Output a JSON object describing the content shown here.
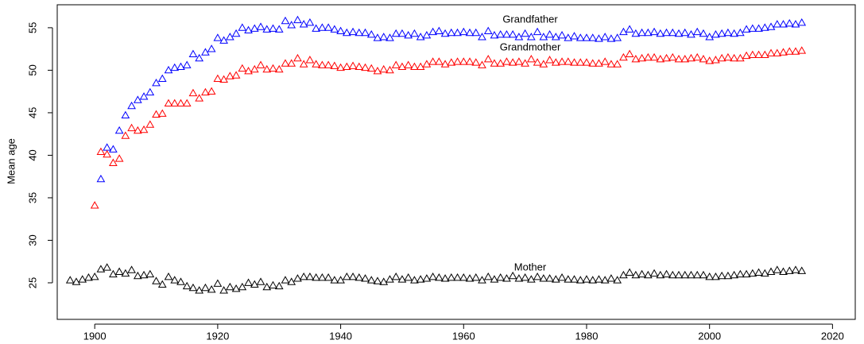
{
  "chart_data": {
    "type": "scatter",
    "y_label": "Mean age",
    "xlim": [
      1893.9,
      2023.7
    ],
    "ylim": [
      20.7,
      57.7
    ],
    "xticks": [
      1900,
      1920,
      1940,
      1960,
      1980,
      2000,
      2020
    ],
    "yticks": [
      25,
      30,
      35,
      40,
      45,
      50,
      55
    ],
    "series": [
      {
        "name": "Grandfather",
        "color": "#0000ff",
        "x": [
          1901,
          1902,
          1903,
          1904,
          1905,
          1906,
          1907,
          1908,
          1909,
          1910,
          1911,
          1912,
          1913,
          1914,
          1915,
          1916,
          1917,
          1918,
          1919,
          1920,
          1921,
          1922,
          1923,
          1924,
          1925,
          1926,
          1927,
          1928,
          1929,
          1930,
          1931,
          1932,
          1933,
          1934,
          1935,
          1936,
          1937,
          1938,
          1939,
          1940,
          1941,
          1942,
          1943,
          1944,
          1945,
          1946,
          1947,
          1948,
          1949,
          1950,
          1951,
          1952,
          1953,
          1954,
          1955,
          1956,
          1957,
          1958,
          1959,
          1960,
          1961,
          1962,
          1963,
          1964,
          1965,
          1966,
          1967,
          1968,
          1969,
          1970,
          1971,
          1972,
          1973,
          1974,
          1975,
          1976,
          1977,
          1978,
          1979,
          1980,
          1981,
          1982,
          1983,
          1984,
          1985,
          1986,
          1987,
          1988,
          1989,
          1990,
          1991,
          1992,
          1993,
          1994,
          1995,
          1996,
          1997,
          1998,
          1999,
          2000,
          2001,
          2002,
          2003,
          2004,
          2005,
          2006,
          2007,
          2008,
          2009,
          2010,
          2011,
          2012,
          2013,
          2014,
          2015
        ],
        "values": [
          37.2,
          40.9,
          40.7,
          42.9,
          44.7,
          45.8,
          46.5,
          46.9,
          47.4,
          48.5,
          49.0,
          50.0,
          50.3,
          50.4,
          50.6,
          51.9,
          51.4,
          52.1,
          52.5,
          53.8,
          53.5,
          53.9,
          54.3,
          55.0,
          54.7,
          54.9,
          55.1,
          54.8,
          54.9,
          54.8,
          55.8,
          55.3,
          55.9,
          55.4,
          55.6,
          54.9,
          55.0,
          55.0,
          54.8,
          54.6,
          54.4,
          54.5,
          54.4,
          54.4,
          54.2,
          53.8,
          53.9,
          53.8,
          54.3,
          54.3,
          54.1,
          54.3,
          53.9,
          54.1,
          54.5,
          54.6,
          54.3,
          54.4,
          54.4,
          54.5,
          54.4,
          54.4,
          53.9,
          54.6,
          54.1,
          54.2,
          54.2,
          54.2,
          53.9,
          54.3,
          53.9,
          54.5,
          53.9,
          54.2,
          53.9,
          54.1,
          53.8,
          54.0,
          53.8,
          53.8,
          53.8,
          53.7,
          53.9,
          53.7,
          53.8,
          54.5,
          54.8,
          54.3,
          54.4,
          54.4,
          54.5,
          54.3,
          54.4,
          54.4,
          54.3,
          54.4,
          54.2,
          54.5,
          54.3,
          53.9,
          54.2,
          54.3,
          54.4,
          54.3,
          54.4,
          54.8,
          54.9,
          54.9,
          55.0,
          55.1,
          55.4,
          55.4,
          55.5,
          55.4,
          55.6
        ]
      },
      {
        "name": "Grandmother",
        "color": "#ff0000",
        "x": [
          1900,
          1901,
          1902,
          1903,
          1904,
          1905,
          1906,
          1907,
          1908,
          1909,
          1910,
          1911,
          1912,
          1913,
          1914,
          1915,
          1916,
          1917,
          1918,
          1919,
          1920,
          1921,
          1922,
          1923,
          1924,
          1925,
          1926,
          1927,
          1928,
          1929,
          1930,
          1931,
          1932,
          1933,
          1934,
          1935,
          1936,
          1937,
          1938,
          1939,
          1940,
          1941,
          1942,
          1943,
          1944,
          1945,
          1946,
          1947,
          1948,
          1949,
          1950,
          1951,
          1952,
          1953,
          1954,
          1955,
          1956,
          1957,
          1958,
          1959,
          1960,
          1961,
          1962,
          1963,
          1964,
          1965,
          1966,
          1967,
          1968,
          1969,
          1970,
          1971,
          1972,
          1973,
          1974,
          1975,
          1976,
          1977,
          1978,
          1979,
          1980,
          1981,
          1982,
          1983,
          1984,
          1985,
          1986,
          1987,
          1988,
          1989,
          1990,
          1991,
          1992,
          1993,
          1994,
          1995,
          1996,
          1997,
          1998,
          1999,
          2000,
          2001,
          2002,
          2003,
          2004,
          2005,
          2006,
          2007,
          2008,
          2009,
          2010,
          2011,
          2012,
          2013,
          2014,
          2015
        ],
        "values": [
          34.1,
          40.4,
          40.1,
          39.1,
          39.6,
          42.3,
          43.2,
          42.9,
          43.0,
          43.6,
          44.8,
          44.9,
          46.1,
          46.1,
          46.1,
          46.1,
          47.3,
          46.7,
          47.4,
          47.5,
          49.0,
          48.9,
          49.3,
          49.4,
          50.2,
          49.9,
          50.1,
          50.6,
          50.1,
          50.2,
          50.1,
          50.8,
          50.8,
          51.4,
          50.7,
          51.2,
          50.7,
          50.6,
          50.6,
          50.5,
          50.3,
          50.4,
          50.5,
          50.4,
          50.3,
          50.2,
          49.9,
          50.1,
          50.0,
          50.6,
          50.4,
          50.6,
          50.4,
          50.4,
          50.7,
          51.0,
          51.0,
          50.7,
          50.9,
          51.0,
          51.0,
          51.0,
          50.9,
          50.6,
          51.3,
          50.8,
          50.8,
          51.0,
          50.9,
          51.0,
          50.8,
          51.3,
          50.9,
          50.7,
          51.2,
          50.9,
          51.0,
          51.0,
          50.9,
          50.9,
          50.9,
          50.8,
          50.8,
          51.0,
          50.7,
          50.7,
          51.5,
          51.9,
          51.3,
          51.4,
          51.5,
          51.5,
          51.3,
          51.4,
          51.5,
          51.3,
          51.3,
          51.4,
          51.5,
          51.3,
          51.1,
          51.2,
          51.4,
          51.5,
          51.4,
          51.4,
          51.7,
          51.8,
          51.8,
          51.8,
          52.0,
          52.0,
          52.1,
          52.2,
          52.2,
          52.3
        ]
      },
      {
        "name": "Mother",
        "color": "#000000",
        "x": [
          1896,
          1897,
          1898,
          1899,
          1900,
          1901,
          1902,
          1903,
          1904,
          1905,
          1906,
          1907,
          1908,
          1909,
          1910,
          1911,
          1912,
          1913,
          1914,
          1915,
          1916,
          1917,
          1918,
          1919,
          1920,
          1921,
          1922,
          1923,
          1924,
          1925,
          1926,
          1927,
          1928,
          1929,
          1930,
          1931,
          1932,
          1933,
          1934,
          1935,
          1936,
          1937,
          1938,
          1939,
          1940,
          1941,
          1942,
          1943,
          1944,
          1945,
          1946,
          1947,
          1948,
          1949,
          1950,
          1951,
          1952,
          1953,
          1954,
          1955,
          1956,
          1957,
          1958,
          1959,
          1960,
          1961,
          1962,
          1963,
          1964,
          1965,
          1966,
          1967,
          1968,
          1969,
          1970,
          1971,
          1972,
          1973,
          1974,
          1975,
          1976,
          1977,
          1978,
          1979,
          1980,
          1981,
          1982,
          1983,
          1984,
          1985,
          1986,
          1987,
          1988,
          1989,
          1990,
          1991,
          1992,
          1993,
          1994,
          1995,
          1996,
          1997,
          1998,
          1999,
          2000,
          2001,
          2002,
          2003,
          2004,
          2005,
          2006,
          2007,
          2008,
          2009,
          2010,
          2011,
          2012,
          2013,
          2014,
          2015
        ],
        "values": [
          25.3,
          25.1,
          25.4,
          25.6,
          25.7,
          26.6,
          26.8,
          26.0,
          26.3,
          26.1,
          26.5,
          25.8,
          25.9,
          26.0,
          25.2,
          24.8,
          25.7,
          25.3,
          25.1,
          24.6,
          24.4,
          24.1,
          24.4,
          24.2,
          24.9,
          24.1,
          24.5,
          24.3,
          24.5,
          25.0,
          24.8,
          25.1,
          24.5,
          24.7,
          24.6,
          25.3,
          25.1,
          25.5,
          25.7,
          25.7,
          25.6,
          25.6,
          25.6,
          25.3,
          25.3,
          25.7,
          25.7,
          25.6,
          25.5,
          25.3,
          25.2,
          25.1,
          25.4,
          25.7,
          25.4,
          25.6,
          25.3,
          25.4,
          25.5,
          25.7,
          25.6,
          25.5,
          25.6,
          25.6,
          25.6,
          25.5,
          25.6,
          25.3,
          25.7,
          25.4,
          25.6,
          25.5,
          25.8,
          25.5,
          25.6,
          25.4,
          25.7,
          25.5,
          25.5,
          25.4,
          25.6,
          25.4,
          25.4,
          25.3,
          25.4,
          25.3,
          25.4,
          25.3,
          25.5,
          25.3,
          25.9,
          26.2,
          25.9,
          26.0,
          25.9,
          26.1,
          25.9,
          26.0,
          25.9,
          25.9,
          25.9,
          25.9,
          25.9,
          25.9,
          25.7,
          25.7,
          25.8,
          25.8,
          25.9,
          26.0,
          26.0,
          26.1,
          26.2,
          26.1,
          26.3,
          26.5,
          26.3,
          26.4,
          26.5,
          26.4
        ]
      }
    ]
  }
}
